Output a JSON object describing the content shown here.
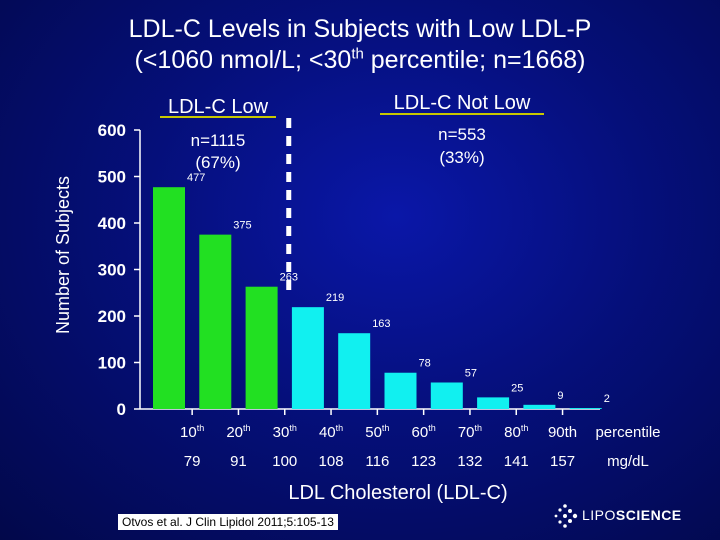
{
  "title_line1": "LDL-C Levels in Subjects with Low LDL-P",
  "title_line2_pre": "(<1060 nmol/L; <30",
  "title_line2_sup": "th",
  "title_line2_post": " percentile; n=1668)",
  "citation": "Otvos et al. J Clin Lipidol 2011;5:105-13",
  "logo": {
    "pre": "LIPO",
    "bold": "SCIENCE"
  },
  "colors": {
    "low": "#22e022",
    "notlow": "#11f0f0",
    "text": "#ffffff"
  },
  "chart_data": {
    "type": "bar",
    "title": "LDL-C Levels in Subjects with Low LDL-P",
    "ylabel": "Number of Subjects",
    "xlabel": "LDL Cholesterol (LDL-C)",
    "ylim": [
      0,
      600
    ],
    "yticks": [
      0,
      100,
      200,
      300,
      400,
      500,
      600
    ],
    "values": [
      477,
      375,
      263,
      219,
      163,
      78,
      57,
      25,
      9,
      2
    ],
    "groups": [
      "low",
      "low",
      "low",
      "notlow",
      "notlow",
      "notlow",
      "notlow",
      "notlow",
      "notlow",
      "notlow"
    ],
    "percentiles": [
      {
        "n": "10",
        "s": "th"
      },
      {
        "n": "20",
        "s": "th"
      },
      {
        "n": "30",
        "s": "th"
      },
      {
        "n": "40",
        "s": "th"
      },
      {
        "n": "50",
        "s": "th"
      },
      {
        "n": "60",
        "s": "th"
      },
      {
        "n": "70",
        "s": "th"
      },
      {
        "n": "80",
        "s": "th"
      },
      {
        "n": "90th",
        "s": ""
      }
    ],
    "percentile_unit": "percentile",
    "mgdl": [
      "79",
      "91",
      "100",
      "108",
      "116",
      "123",
      "132",
      "141",
      "157"
    ],
    "mgdl_unit": "mg/dL",
    "group_low": {
      "label": "LDL-C Low",
      "n": "n=1115",
      "pct": "(67%)"
    },
    "group_notlow": {
      "label": "LDL-C Not Low",
      "n": "n=553",
      "pct": "(33%)"
    }
  }
}
